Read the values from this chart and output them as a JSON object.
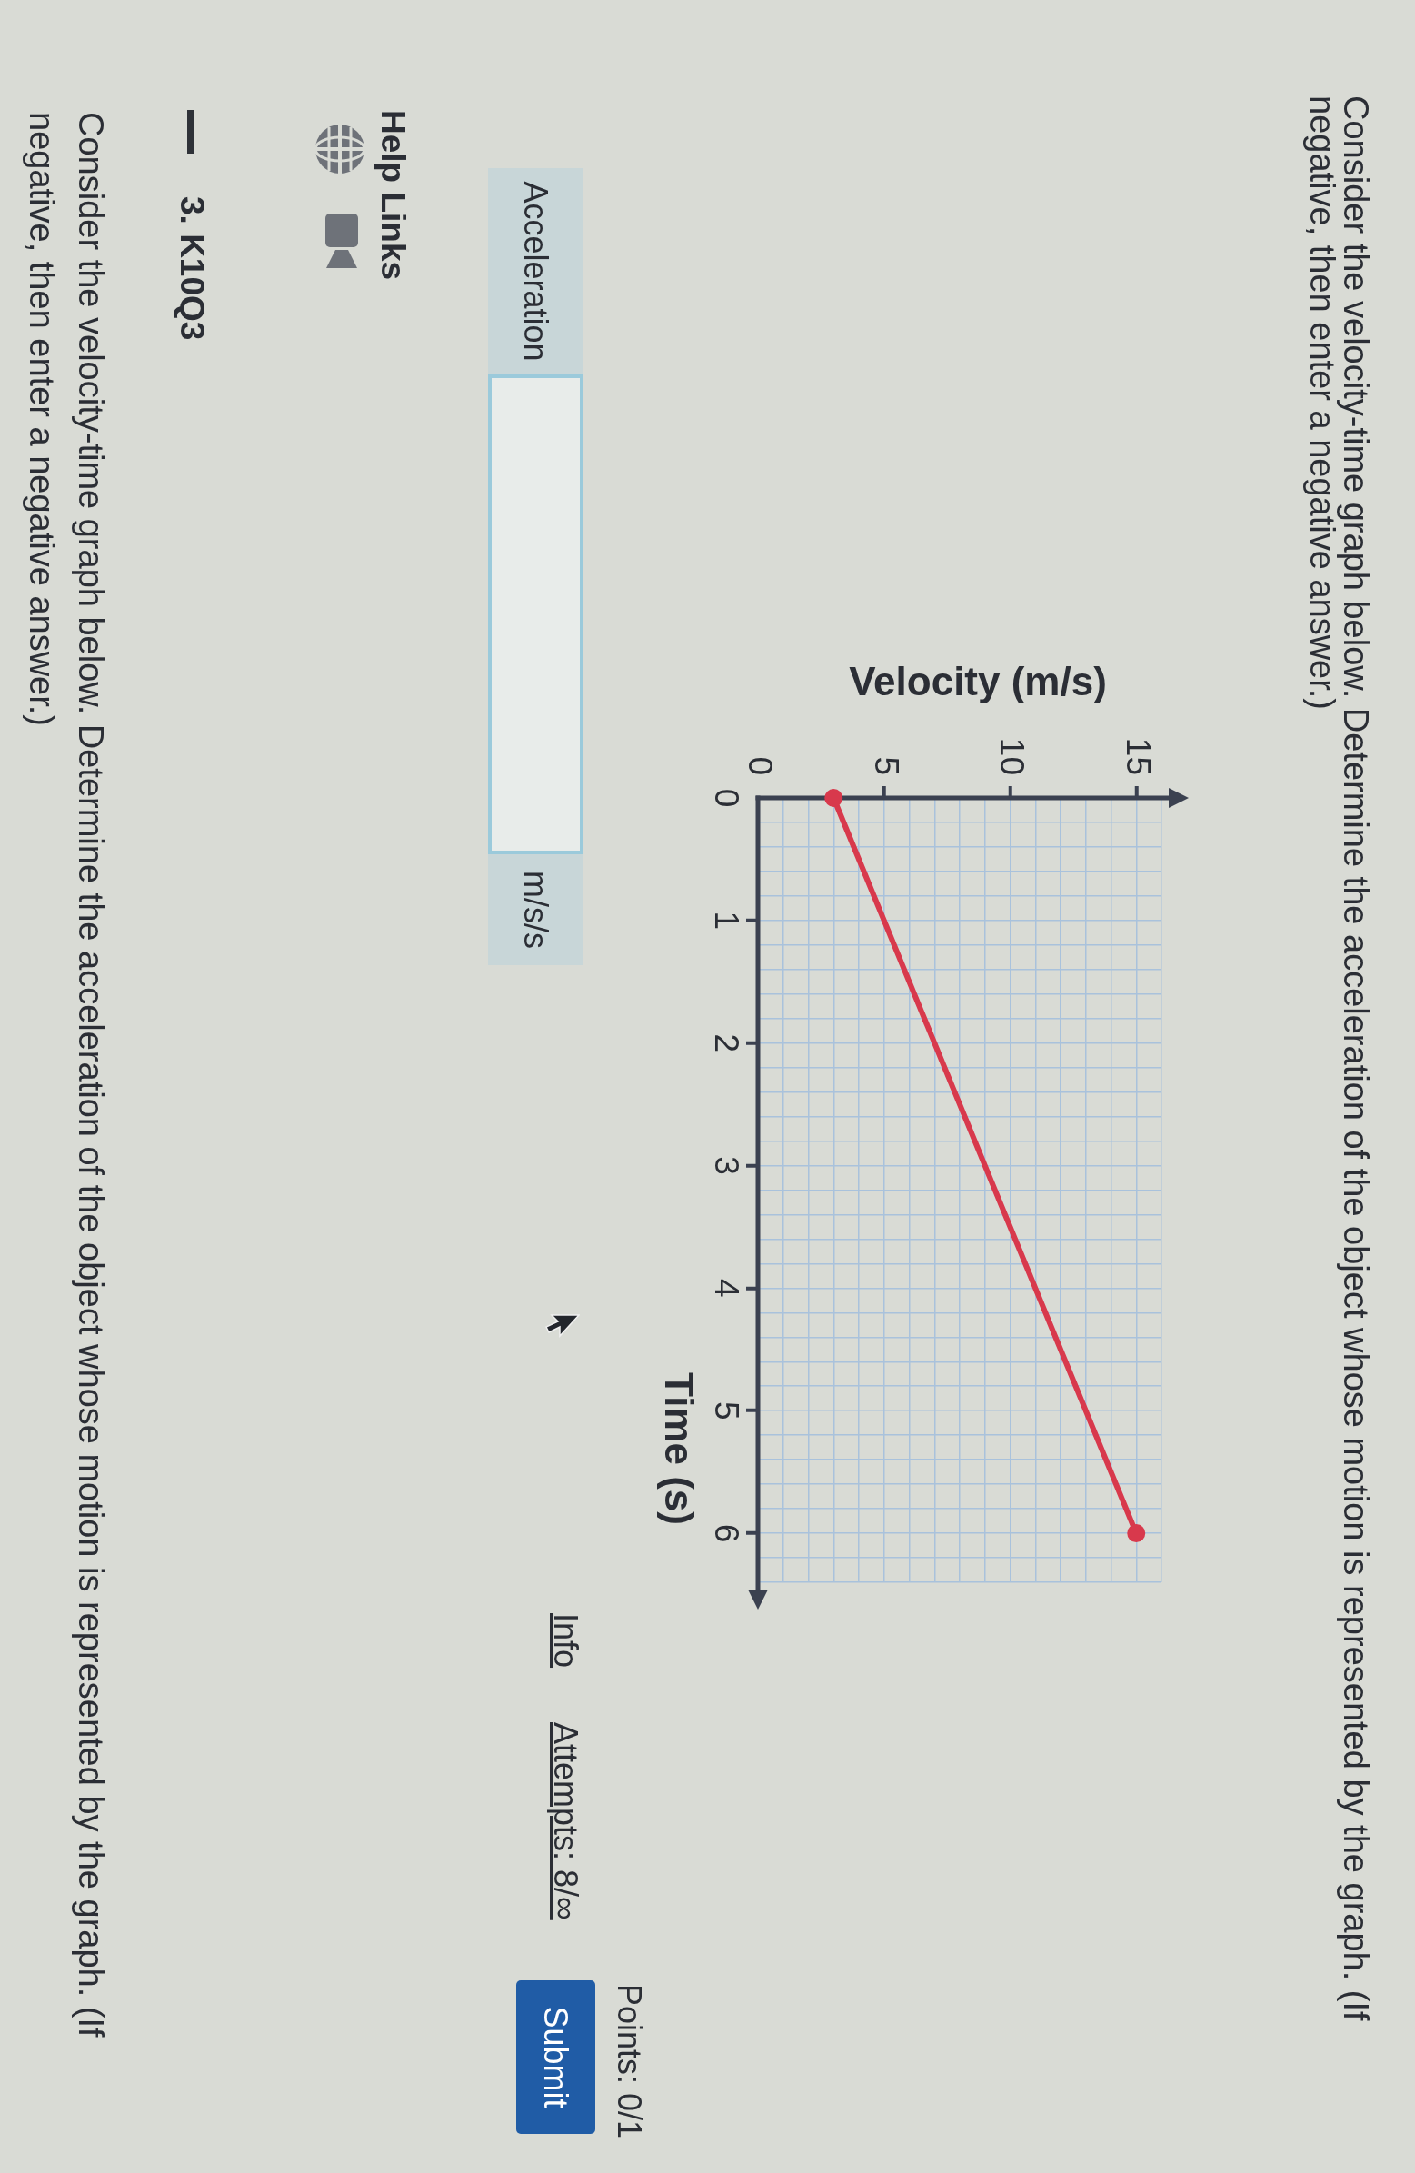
{
  "chart_data": {
    "type": "line",
    "title": "Consider the velocity-time graph below. Determine the acceleration of the object whose motion is represented by the graph. (If negative, then enter a negative answer.)",
    "xlabel": "Velocity (m/s)",
    "ylabel": "Time (s)",
    "x": [
      3,
      15
    ],
    "values": [
      0,
      6
    ],
    "color": "#d8394c",
    "marker": "circle",
    "xlim": [
      0,
      16
    ],
    "ylim": [
      6.4,
      0
    ],
    "xticks": [
      0,
      {
        "value": 1,
        "label": null
      },
      {
        "value": 2,
        "label": null
      },
      {
        "value": 3,
        "label": null
      },
      {
        "value": 4,
        "label": null
      },
      5,
      {
        "value": 6,
        "label": null
      },
      {
        "value": 7,
        "label": null
      },
      {
        "value": 8,
        "label": null
      },
      {
        "value": 9,
        "label": null
      },
      10,
      {
        "value": 11,
        "label": null
      },
      {
        "value": 12,
        "label": null
      },
      {
        "value": 13,
        "label": null
      },
      {
        "value": 14,
        "label": null
      },
      15,
      {
        "value": 16,
        "label": null
      }
    ],
    "yticks": [
      0,
      {
        "value": 0.2,
        "label": null
      },
      {
        "value": 0.4,
        "label": null
      },
      {
        "value": 0.6,
        "label": null
      },
      {
        "value": 0.8,
        "label": null
      },
      1,
      {
        "value": 1.2,
        "label": null
      },
      {
        "value": 1.4,
        "label": null
      },
      {
        "value": 1.6,
        "label": null
      },
      {
        "value": 1.8,
        "label": null
      },
      2,
      {
        "value": 2.2,
        "label": null
      },
      {
        "value": 2.4,
        "label": null
      },
      {
        "value": 2.6,
        "label": null
      },
      {
        "value": 2.8,
        "label": null
      },
      3,
      {
        "value": 3.2,
        "label": null
      },
      {
        "value": 3.4,
        "label": null
      },
      {
        "value": 3.6,
        "label": null
      },
      {
        "value": 3.8,
        "label": null
      },
      4,
      {
        "value": 4.2,
        "label": null
      },
      {
        "value": 4.4,
        "label": null
      },
      {
        "value": 4.6,
        "label": null
      },
      {
        "value": 4.8,
        "label": null
      },
      5,
      {
        "value": 5.2,
        "label": null
      },
      {
        "value": 5.4,
        "label": null
      },
      {
        "value": 5.6,
        "label": null
      },
      {
        "value": 5.8,
        "label": null
      },
      6,
      {
        "value": 6.2,
        "label": null
      },
      {
        "value": 6.4,
        "label": null
      }
    ],
    "grid": true,
    "annotations": [
      "Acceleration",
      "m/s/s",
      "Info",
      "Attempts: 8/∞",
      "Points: 0/1",
      "Submit",
      "Help Links",
      "3. K10Q3",
      "Consider the velocity-time graph below. Determine the acceleration of the object whose motion is represented by the graph. (If negative, then enter a negative answer.)"
    ]
  }
}
